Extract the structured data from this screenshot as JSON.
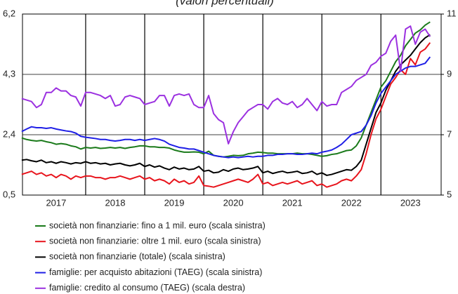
{
  "chart_data": {
    "type": "line",
    "title": "(valori percentuali)",
    "x": [
      2016.917,
      2017,
      2017.083,
      2017.167,
      2017.25,
      2017.333,
      2017.417,
      2017.5,
      2017.583,
      2017.667,
      2017.75,
      2017.833,
      2017.917,
      2018,
      2018.083,
      2018.167,
      2018.25,
      2018.333,
      2018.417,
      2018.5,
      2018.583,
      2018.667,
      2018.75,
      2018.833,
      2018.917,
      2019,
      2019.083,
      2019.167,
      2019.25,
      2019.333,
      2019.417,
      2019.5,
      2019.583,
      2019.667,
      2019.75,
      2019.833,
      2019.917,
      2020,
      2020.083,
      2020.167,
      2020.25,
      2020.333,
      2020.417,
      2020.5,
      2020.583,
      2020.667,
      2020.75,
      2020.833,
      2020.917,
      2021,
      2021.083,
      2021.167,
      2021.25,
      2021.333,
      2021.417,
      2021.5,
      2021.583,
      2021.667,
      2021.75,
      2021.833,
      2021.917,
      2022,
      2022.083,
      2022.167,
      2022.25,
      2022.333,
      2022.417,
      2022.5,
      2022.583,
      2022.667,
      2022.75,
      2022.833,
      2022.917,
      2023,
      2023.083,
      2023.167,
      2023.25,
      2023.333,
      2023.417,
      2023.5,
      2023.583,
      2023.667,
      2023.75,
      2023.833
    ],
    "series": [
      {
        "name": "società non finanziarie: fino a 1 mil. euro (scala sinistra)",
        "color": "#1a7a1a",
        "axis": "y",
        "values": [
          2.3,
          2.25,
          2.22,
          2.2,
          2.22,
          2.18,
          2.15,
          2.1,
          2.12,
          2.1,
          2.05,
          2.02,
          1.95,
          2.0,
          1.98,
          2.0,
          1.97,
          1.98,
          2.0,
          1.98,
          2.0,
          1.97,
          2.0,
          2.02,
          2.05,
          2.05,
          2.02,
          2.02,
          2.0,
          2.0,
          1.98,
          1.92,
          1.88,
          1.85,
          1.85,
          1.86,
          1.85,
          1.8,
          1.88,
          1.75,
          1.72,
          1.7,
          1.72,
          1.75,
          1.74,
          1.75,
          1.8,
          1.82,
          1.85,
          1.84,
          1.82,
          1.82,
          1.8,
          1.8,
          1.8,
          1.8,
          1.82,
          1.8,
          1.8,
          1.78,
          1.75,
          1.72,
          1.74,
          1.78,
          1.8,
          1.85,
          1.9,
          1.92,
          2.05,
          2.3,
          2.7,
          3.1,
          3.5,
          3.9,
          4.1,
          4.4,
          4.7,
          4.9,
          5.2,
          5.4,
          5.6,
          5.7,
          5.85,
          5.95
        ]
      },
      {
        "name": "società non finanziarie: oltre 1 mil. euro (scala sinistra)",
        "color": "#e8141c",
        "axis": "y",
        "values": [
          1.15,
          1.2,
          1.25,
          1.15,
          1.2,
          1.1,
          1.15,
          1.05,
          1.15,
          1.1,
          1.0,
          1.1,
          1.05,
          1.1,
          1.1,
          1.05,
          1.05,
          1.0,
          1.05,
          1.05,
          1.1,
          1.05,
          1.0,
          1.05,
          1.1,
          1.0,
          1.05,
          0.95,
          1.0,
          0.95,
          0.85,
          1.0,
          0.9,
          0.95,
          0.85,
          0.9,
          1.1,
          0.8,
          0.78,
          0.75,
          0.8,
          0.85,
          0.9,
          0.95,
          1.0,
          0.95,
          0.9,
          1.0,
          1.15,
          0.85,
          0.9,
          0.8,
          0.85,
          0.9,
          0.85,
          0.9,
          0.95,
          0.85,
          0.9,
          0.95,
          0.8,
          0.85,
          0.75,
          0.8,
          0.85,
          0.95,
          1.0,
          0.95,
          1.1,
          1.3,
          1.8,
          2.4,
          2.9,
          3.2,
          3.6,
          4.0,
          4.2,
          4.45,
          4.3,
          4.8,
          4.6,
          5.0,
          5.1,
          5.3
        ]
      },
      {
        "name": "società non finanziarie (totale) (scala sinistra)",
        "color": "#000000",
        "axis": "y",
        "values": [
          1.6,
          1.62,
          1.58,
          1.55,
          1.6,
          1.52,
          1.55,
          1.5,
          1.55,
          1.52,
          1.48,
          1.52,
          1.5,
          1.55,
          1.5,
          1.52,
          1.48,
          1.5,
          1.45,
          1.48,
          1.5,
          1.45,
          1.42,
          1.45,
          1.5,
          1.4,
          1.45,
          1.38,
          1.42,
          1.35,
          1.3,
          1.38,
          1.32,
          1.35,
          1.3,
          1.32,
          1.4,
          1.25,
          1.28,
          1.2,
          1.22,
          1.3,
          1.25,
          1.32,
          1.35,
          1.3,
          1.32,
          1.35,
          1.4,
          1.2,
          1.25,
          1.18,
          1.22,
          1.25,
          1.2,
          1.22,
          1.25,
          1.18,
          1.2,
          1.25,
          1.15,
          1.2,
          1.12,
          1.15,
          1.2,
          1.25,
          1.3,
          1.28,
          1.4,
          1.6,
          2.1,
          2.6,
          3.1,
          3.4,
          3.8,
          4.1,
          4.4,
          4.6,
          4.75,
          4.9,
          5.1,
          5.3,
          5.45,
          5.55
        ]
      },
      {
        "name": "famiglie: per acquisto abitazioni (TAEG) (scala sinistra)",
        "color": "#1f1fe6",
        "axis": "y",
        "values": [
          2.5,
          2.58,
          2.65,
          2.62,
          2.62,
          2.6,
          2.62,
          2.58,
          2.55,
          2.52,
          2.5,
          2.45,
          2.35,
          2.32,
          2.3,
          2.28,
          2.25,
          2.25,
          2.22,
          2.2,
          2.22,
          2.25,
          2.25,
          2.22,
          2.25,
          2.22,
          2.25,
          2.28,
          2.25,
          2.2,
          2.1,
          2.05,
          2.0,
          1.98,
          1.95,
          1.95,
          1.9,
          1.85,
          1.8,
          1.75,
          1.72,
          1.7,
          1.68,
          1.7,
          1.68,
          1.7,
          1.72,
          1.7,
          1.72,
          1.72,
          1.75,
          1.75,
          1.78,
          1.78,
          1.8,
          1.8,
          1.78,
          1.78,
          1.8,
          1.82,
          1.8,
          1.85,
          1.88,
          1.92,
          2.0,
          2.1,
          2.25,
          2.4,
          2.45,
          2.5,
          2.7,
          3.0,
          3.4,
          3.7,
          3.9,
          4.1,
          4.3,
          4.4,
          4.5,
          4.55,
          4.55,
          4.6,
          4.65,
          4.85
        ]
      },
      {
        "name": "famiglie: credito al consumo (TAEG) (scala destra)",
        "color": "#9b30e0",
        "axis": "y2",
        "values": [
          8.2,
          8.15,
          8.1,
          7.9,
          8.0,
          8.4,
          8.4,
          8.55,
          8.45,
          8.45,
          8.3,
          8.25,
          7.95,
          8.4,
          8.4,
          8.35,
          8.3,
          8.2,
          8.3,
          7.95,
          8.0,
          8.25,
          8.3,
          8.25,
          8.2,
          8.0,
          8.05,
          8.1,
          8.3,
          8.3,
          7.95,
          8.3,
          8.35,
          8.3,
          8.35,
          8.0,
          7.9,
          7.9,
          8.3,
          7.7,
          7.5,
          7.4,
          6.7,
          7.1,
          7.4,
          7.6,
          7.8,
          7.9,
          8.0,
          8.0,
          7.85,
          8.1,
          8.2,
          8.05,
          8.0,
          8.1,
          7.9,
          8.0,
          8.2,
          8.0,
          7.8,
          8.1,
          7.95,
          8.0,
          8.0,
          8.4,
          8.5,
          8.6,
          8.8,
          8.9,
          9.0,
          9.3,
          9.4,
          9.6,
          9.7,
          10.1,
          10.3,
          9.1,
          10.5,
          10.6,
          10.0,
          10.4,
          10.5,
          10.25
        ]
      }
    ],
    "xlim": [
      2016.93,
      2024.02
    ],
    "xticks": [
      {
        "value": 2017,
        "label": "2017"
      },
      {
        "value": 2018,
        "label": "2018"
      },
      {
        "value": 2019,
        "label": "2019"
      },
      {
        "value": 2020,
        "label": "2020"
      },
      {
        "value": 2021,
        "label": "2021"
      },
      {
        "value": 2022,
        "label": "2022"
      },
      {
        "value": 2023,
        "label": "2023"
      }
    ],
    "ylim": [
      0.5,
      6.2
    ],
    "yticks": [
      {
        "value": 0.5,
        "label": "0,5"
      },
      {
        "value": 2.4,
        "label": "2,4"
      },
      {
        "value": 4.3,
        "label": "4,3"
      },
      {
        "value": 6.2,
        "label": "6,2"
      }
    ],
    "y2lim": [
      5,
      11
    ],
    "y2ticks": [
      5,
      7,
      9,
      11
    ],
    "grid": true
  }
}
